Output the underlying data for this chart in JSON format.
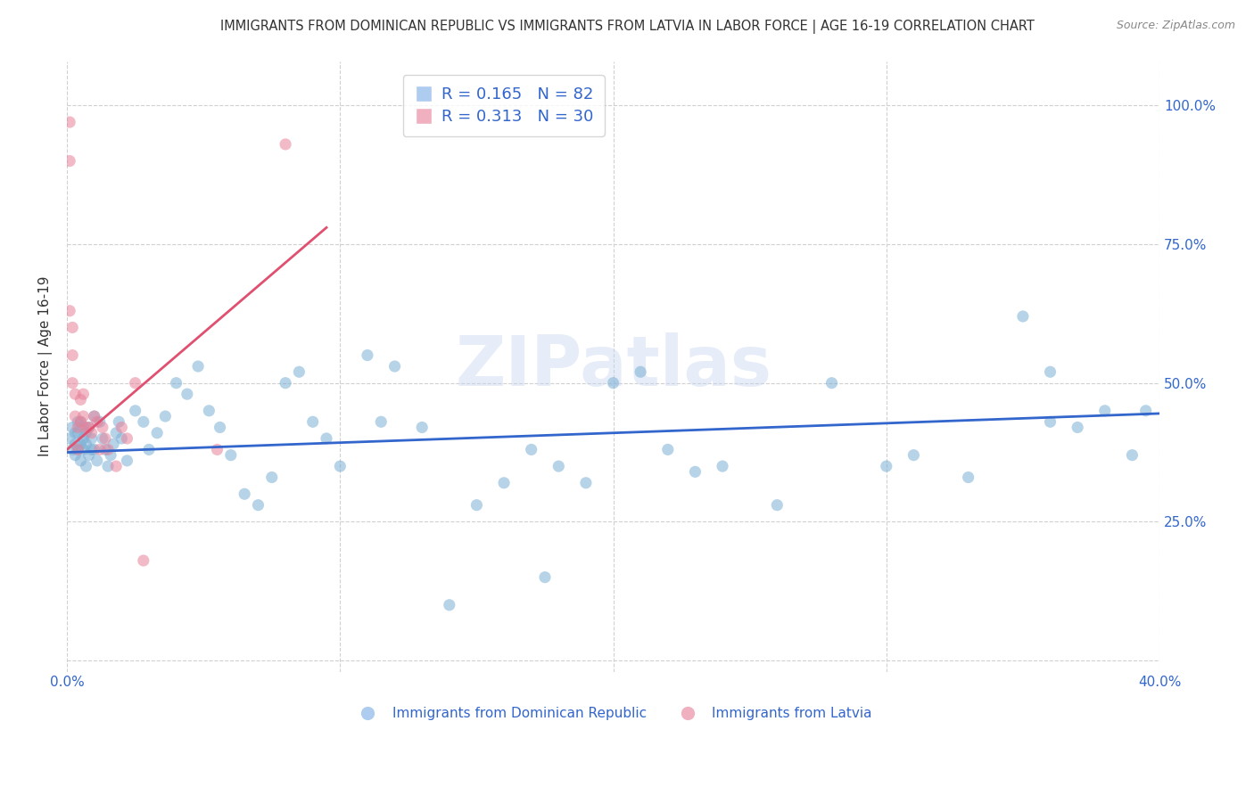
{
  "title": "IMMIGRANTS FROM DOMINICAN REPUBLIC VS IMMIGRANTS FROM LATVIA IN LABOR FORCE | AGE 16-19 CORRELATION CHART",
  "source": "Source: ZipAtlas.com",
  "ylabel": "In Labor Force | Age 16-19",
  "xlim": [
    0.0,
    0.4
  ],
  "ylim": [
    -0.02,
    1.08
  ],
  "yticks": [
    0.0,
    0.25,
    0.5,
    0.75,
    1.0
  ],
  "xticks": [
    0.0,
    0.1,
    0.2,
    0.3,
    0.4
  ],
  "xtick_labels": [
    "0.0%",
    "",
    "",
    "",
    "40.0%"
  ],
  "right_ytick_labels": [
    "",
    "25.0%",
    "50.0%",
    "75.0%",
    "100.0%"
  ],
  "watermark": "ZIPatlas",
  "blue_scatter_x": [
    0.001,
    0.002,
    0.002,
    0.003,
    0.003,
    0.003,
    0.004,
    0.004,
    0.004,
    0.005,
    0.005,
    0.005,
    0.006,
    0.006,
    0.006,
    0.007,
    0.007,
    0.007,
    0.008,
    0.008,
    0.009,
    0.009,
    0.01,
    0.01,
    0.011,
    0.012,
    0.013,
    0.014,
    0.015,
    0.016,
    0.017,
    0.018,
    0.019,
    0.02,
    0.022,
    0.025,
    0.028,
    0.03,
    0.033,
    0.036,
    0.04,
    0.044,
    0.048,
    0.052,
    0.056,
    0.06,
    0.065,
    0.07,
    0.075,
    0.08,
    0.085,
    0.09,
    0.095,
    0.1,
    0.11,
    0.115,
    0.12,
    0.13,
    0.14,
    0.15,
    0.16,
    0.17,
    0.175,
    0.18,
    0.19,
    0.2,
    0.21,
    0.22,
    0.23,
    0.24,
    0.26,
    0.28,
    0.3,
    0.31,
    0.33,
    0.35,
    0.36,
    0.37,
    0.38,
    0.39,
    0.36,
    0.395
  ],
  "blue_scatter_y": [
    0.4,
    0.38,
    0.42,
    0.37,
    0.41,
    0.39,
    0.38,
    0.41,
    0.43,
    0.39,
    0.36,
    0.43,
    0.38,
    0.4,
    0.42,
    0.35,
    0.39,
    0.41,
    0.42,
    0.37,
    0.38,
    0.4,
    0.44,
    0.38,
    0.36,
    0.43,
    0.4,
    0.38,
    0.35,
    0.37,
    0.39,
    0.41,
    0.43,
    0.4,
    0.36,
    0.45,
    0.43,
    0.38,
    0.41,
    0.44,
    0.5,
    0.48,
    0.53,
    0.45,
    0.42,
    0.37,
    0.3,
    0.28,
    0.33,
    0.5,
    0.52,
    0.43,
    0.4,
    0.35,
    0.55,
    0.43,
    0.53,
    0.42,
    0.1,
    0.28,
    0.32,
    0.38,
    0.15,
    0.35,
    0.32,
    0.5,
    0.52,
    0.38,
    0.34,
    0.35,
    0.28,
    0.5,
    0.35,
    0.37,
    0.33,
    0.62,
    0.43,
    0.42,
    0.45,
    0.37,
    0.52,
    0.45
  ],
  "pink_scatter_x": [
    0.001,
    0.001,
    0.001,
    0.002,
    0.002,
    0.002,
    0.003,
    0.003,
    0.004,
    0.004,
    0.005,
    0.005,
    0.006,
    0.006,
    0.007,
    0.008,
    0.009,
    0.01,
    0.011,
    0.012,
    0.013,
    0.014,
    0.015,
    0.018,
    0.02,
    0.022,
    0.025,
    0.028,
    0.055,
    0.08
  ],
  "pink_scatter_y": [
    0.97,
    0.9,
    0.63,
    0.6,
    0.55,
    0.5,
    0.48,
    0.44,
    0.42,
    0.38,
    0.47,
    0.43,
    0.48,
    0.44,
    0.42,
    0.42,
    0.41,
    0.44,
    0.43,
    0.38,
    0.42,
    0.4,
    0.38,
    0.35,
    0.42,
    0.4,
    0.5,
    0.18,
    0.38,
    0.93
  ],
  "blue_line_x": [
    0.0,
    0.4
  ],
  "blue_line_y": [
    0.375,
    0.445
  ],
  "pink_line_x": [
    0.0,
    0.095
  ],
  "pink_line_y": [
    0.38,
    0.78
  ],
  "blue_color": "#7bafd4",
  "pink_color": "#e8829a",
  "blue_line_color": "#3366cc",
  "pink_line_color": "#e05070",
  "background_color": "#ffffff",
  "grid_color": "#d0d0d0",
  "title_color": "#333333",
  "tick_color": "#3366cc",
  "watermark_color": "#c8d8f0",
  "legend_box_color_blue": "#aeccf0",
  "legend_box_color_pink": "#f0b0c0",
  "legend_r_blue": "R = 0.165",
  "legend_n_blue": "N = 82",
  "legend_r_pink": "R = 0.313",
  "legend_n_pink": "N = 30"
}
